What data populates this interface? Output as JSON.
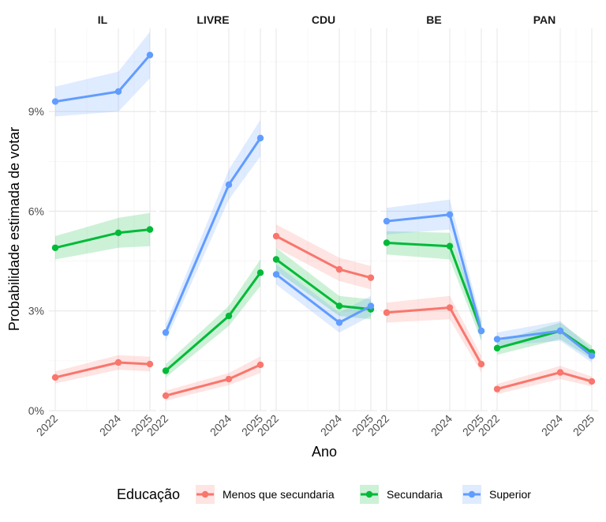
{
  "chart_data": {
    "type": "line",
    "facets": [
      "IL",
      "LIVRE",
      "CDU",
      "BE",
      "PAN"
    ],
    "x": [
      2022,
      2024,
      2025
    ],
    "x_tick_labels": [
      "2022",
      "2024",
      "2025"
    ],
    "xlabel": "Ano",
    "ylabel": "Probabilidade estimada de votar",
    "ylim": [
      0,
      11.5
    ],
    "y_ticks": [
      0,
      3,
      6,
      9
    ],
    "y_tick_labels": [
      "0%",
      "3%",
      "6%",
      "9%"
    ],
    "grid": true,
    "legend": {
      "title": "Educação",
      "position": "bottom"
    },
    "series": [
      {
        "name": "Menos que secundaria",
        "color": "#F8766D",
        "values": {
          "IL": [
            1.0,
            1.45,
            1.4
          ],
          "LIVRE": [
            0.45,
            0.95,
            1.38
          ],
          "CDU": [
            5.25,
            4.25,
            4.0
          ],
          "BE": [
            2.95,
            3.1,
            1.4
          ],
          "PAN": [
            0.65,
            1.15,
            0.88
          ]
        },
        "ci_half_width": {
          "IL": [
            0.18,
            0.22,
            0.22
          ],
          "LIVRE": [
            0.15,
            0.18,
            0.25
          ],
          "CDU": [
            0.35,
            0.35,
            0.35
          ],
          "BE": [
            0.3,
            0.35,
            0.25
          ],
          "PAN": [
            0.15,
            0.2,
            0.15
          ]
        }
      },
      {
        "name": "Secundaria",
        "color": "#00BA38",
        "values": {
          "IL": [
            4.9,
            5.35,
            5.45
          ],
          "LIVRE": [
            1.2,
            2.85,
            4.15
          ],
          "CDU": [
            4.55,
            3.15,
            3.05
          ],
          "BE": [
            5.05,
            4.95,
            2.4
          ],
          "PAN": [
            1.88,
            2.4,
            1.75
          ]
        },
        "ci_half_width": {
          "IL": [
            0.35,
            0.45,
            0.5
          ],
          "LIVRE": [
            0.2,
            0.3,
            0.4
          ],
          "CDU": [
            0.35,
            0.3,
            0.3
          ],
          "BE": [
            0.35,
            0.4,
            0.3
          ],
          "PAN": [
            0.2,
            0.25,
            0.2
          ]
        }
      },
      {
        "name": "Superior",
        "color": "#619CFF",
        "values": {
          "IL": [
            9.3,
            9.6,
            10.7
          ],
          "LIVRE": [
            2.35,
            6.8,
            8.2
          ],
          "CDU": [
            4.1,
            2.65,
            3.15
          ],
          "BE": [
            5.7,
            5.9,
            2.4
          ],
          "PAN": [
            2.15,
            2.4,
            1.65
          ]
        },
        "ci_half_width": {
          "IL": [
            0.45,
            0.6,
            0.7
          ],
          "LIVRE": [
            0.25,
            0.45,
            0.55
          ],
          "CDU": [
            0.3,
            0.3,
            0.3
          ],
          "BE": [
            0.4,
            0.45,
            0.3
          ],
          "PAN": [
            0.2,
            0.3,
            0.2
          ]
        }
      }
    ]
  }
}
